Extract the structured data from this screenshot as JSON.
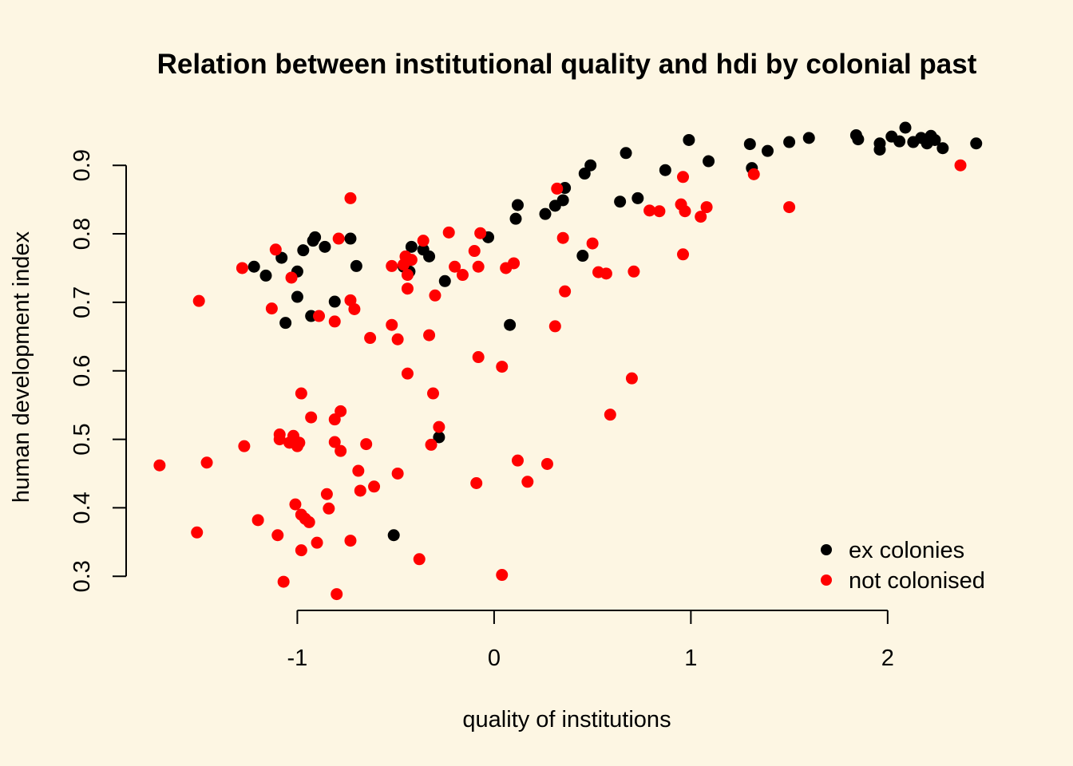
{
  "chart_data": {
    "type": "scatter",
    "title": "Relation between institutional quality and hdi by colonial past",
    "xlabel": "quality of institutions",
    "ylabel": "human development index",
    "xlim": [
      -1.87,
      2.52
    ],
    "ylim": [
      0.27,
      0.955
    ],
    "x_ticks": [
      -1,
      0,
      1,
      2
    ],
    "y_ticks": [
      0.3,
      0.4,
      0.5,
      0.6,
      0.7,
      0.8,
      0.9
    ],
    "grid": false,
    "legend_position": "bottom-right",
    "series": [
      {
        "name": "ex colonies",
        "color": "#000000",
        "points": [
          [
            -1.22,
            0.752
          ],
          [
            -1.16,
            0.739
          ],
          [
            -1.08,
            0.765
          ],
          [
            -1.06,
            0.67
          ],
          [
            -1.0,
            0.745
          ],
          [
            -1.0,
            0.708
          ],
          [
            -0.97,
            0.776
          ],
          [
            -0.93,
            0.68
          ],
          [
            -0.92,
            0.79
          ],
          [
            -0.91,
            0.795
          ],
          [
            -0.86,
            0.781
          ],
          [
            -0.81,
            0.701
          ],
          [
            -0.73,
            0.793
          ],
          [
            -0.7,
            0.753
          ],
          [
            -0.51,
            0.36
          ],
          [
            -0.46,
            0.752
          ],
          [
            -0.43,
            0.745
          ],
          [
            -0.42,
            0.781
          ],
          [
            -0.36,
            0.777
          ],
          [
            -0.33,
            0.767
          ],
          [
            -0.28,
            0.503
          ],
          [
            -0.25,
            0.731
          ],
          [
            -0.03,
            0.795
          ],
          [
            0.08,
            0.667
          ],
          [
            0.11,
            0.822
          ],
          [
            0.12,
            0.842
          ],
          [
            0.26,
            0.829
          ],
          [
            0.31,
            0.841
          ],
          [
            0.35,
            0.849
          ],
          [
            0.36,
            0.867
          ],
          [
            0.45,
            0.768
          ],
          [
            0.46,
            0.888
          ],
          [
            0.49,
            0.9
          ],
          [
            0.64,
            0.847
          ],
          [
            0.67,
            0.918
          ],
          [
            0.73,
            0.852
          ],
          [
            0.87,
            0.893
          ],
          [
            0.99,
            0.937
          ],
          [
            1.09,
            0.906
          ],
          [
            1.3,
            0.931
          ],
          [
            1.31,
            0.896
          ],
          [
            1.39,
            0.921
          ],
          [
            1.5,
            0.934
          ],
          [
            1.6,
            0.94
          ],
          [
            1.84,
            0.944
          ],
          [
            1.85,
            0.938
          ],
          [
            1.96,
            0.923
          ],
          [
            1.96,
            0.932
          ],
          [
            2.02,
            0.942
          ],
          [
            2.06,
            0.935
          ],
          [
            2.09,
            0.955
          ],
          [
            2.13,
            0.934
          ],
          [
            2.17,
            0.94
          ],
          [
            2.2,
            0.932
          ],
          [
            2.22,
            0.943
          ],
          [
            2.24,
            0.937
          ],
          [
            2.28,
            0.925
          ],
          [
            2.45,
            0.932
          ]
        ]
      },
      {
        "name": "not colonised",
        "color": "#FF0000",
        "points": [
          [
            -1.7,
            0.462
          ],
          [
            -1.51,
            0.364
          ],
          [
            -1.5,
            0.702
          ],
          [
            -1.46,
            0.466
          ],
          [
            -1.28,
            0.75
          ],
          [
            -1.27,
            0.49
          ],
          [
            -1.2,
            0.382
          ],
          [
            -1.13,
            0.691
          ],
          [
            -1.11,
            0.777
          ],
          [
            -1.1,
            0.36
          ],
          [
            -1.09,
            0.5
          ],
          [
            -1.09,
            0.507
          ],
          [
            -1.07,
            0.292
          ],
          [
            -1.04,
            0.495
          ],
          [
            -1.03,
            0.736
          ],
          [
            -1.02,
            0.505
          ],
          [
            -1.01,
            0.405
          ],
          [
            -1.0,
            0.49
          ],
          [
            -0.99,
            0.495
          ],
          [
            -0.98,
            0.39
          ],
          [
            -0.98,
            0.338
          ],
          [
            -0.98,
            0.567
          ],
          [
            -0.96,
            0.384
          ],
          [
            -0.94,
            0.379
          ],
          [
            -0.93,
            0.532
          ],
          [
            -0.9,
            0.349
          ],
          [
            -0.89,
            0.68
          ],
          [
            -0.85,
            0.42
          ],
          [
            -0.84,
            0.399
          ],
          [
            -0.81,
            0.672
          ],
          [
            -0.81,
            0.496
          ],
          [
            -0.81,
            0.529
          ],
          [
            -0.8,
            0.274
          ],
          [
            -0.79,
            0.793
          ],
          [
            -0.78,
            0.541
          ],
          [
            -0.78,
            0.483
          ],
          [
            -0.73,
            0.352
          ],
          [
            -0.73,
            0.703
          ],
          [
            -0.73,
            0.852
          ],
          [
            -0.71,
            0.69
          ],
          [
            -0.69,
            0.454
          ],
          [
            -0.68,
            0.425
          ],
          [
            -0.65,
            0.493
          ],
          [
            -0.63,
            0.648
          ],
          [
            -0.61,
            0.431
          ],
          [
            -0.52,
            0.667
          ],
          [
            -0.52,
            0.753
          ],
          [
            -0.49,
            0.646
          ],
          [
            -0.49,
            0.45
          ],
          [
            -0.46,
            0.755
          ],
          [
            -0.45,
            0.767
          ],
          [
            -0.44,
            0.72
          ],
          [
            -0.44,
            0.596
          ],
          [
            -0.44,
            0.74
          ],
          [
            -0.42,
            0.762
          ],
          [
            -0.38,
            0.325
          ],
          [
            -0.36,
            0.79
          ],
          [
            -0.33,
            0.652
          ],
          [
            -0.32,
            0.492
          ],
          [
            -0.31,
            0.567
          ],
          [
            -0.3,
            0.71
          ],
          [
            -0.28,
            0.518
          ],
          [
            -0.23,
            0.802
          ],
          [
            -0.2,
            0.752
          ],
          [
            -0.16,
            0.74
          ],
          [
            -0.1,
            0.775
          ],
          [
            -0.09,
            0.436
          ],
          [
            -0.08,
            0.752
          ],
          [
            -0.08,
            0.62
          ],
          [
            -0.07,
            0.801
          ],
          [
            0.04,
            0.302
          ],
          [
            0.04,
            0.606
          ],
          [
            0.06,
            0.75
          ],
          [
            0.1,
            0.757
          ],
          [
            0.12,
            0.469
          ],
          [
            0.17,
            0.438
          ],
          [
            0.27,
            0.464
          ],
          [
            0.31,
            0.665
          ],
          [
            0.32,
            0.866
          ],
          [
            0.35,
            0.794
          ],
          [
            0.36,
            0.716
          ],
          [
            0.5,
            0.786
          ],
          [
            0.53,
            0.744
          ],
          [
            0.57,
            0.742
          ],
          [
            0.59,
            0.536
          ],
          [
            0.7,
            0.589
          ],
          [
            0.71,
            0.745
          ],
          [
            0.79,
            0.834
          ],
          [
            0.84,
            0.833
          ],
          [
            0.95,
            0.843
          ],
          [
            0.96,
            0.883
          ],
          [
            0.96,
            0.77
          ],
          [
            0.97,
            0.833
          ],
          [
            1.05,
            0.825
          ],
          [
            1.08,
            0.839
          ],
          [
            1.32,
            0.887
          ],
          [
            1.5,
            0.839
          ],
          [
            2.37,
            0.9
          ]
        ]
      }
    ]
  }
}
